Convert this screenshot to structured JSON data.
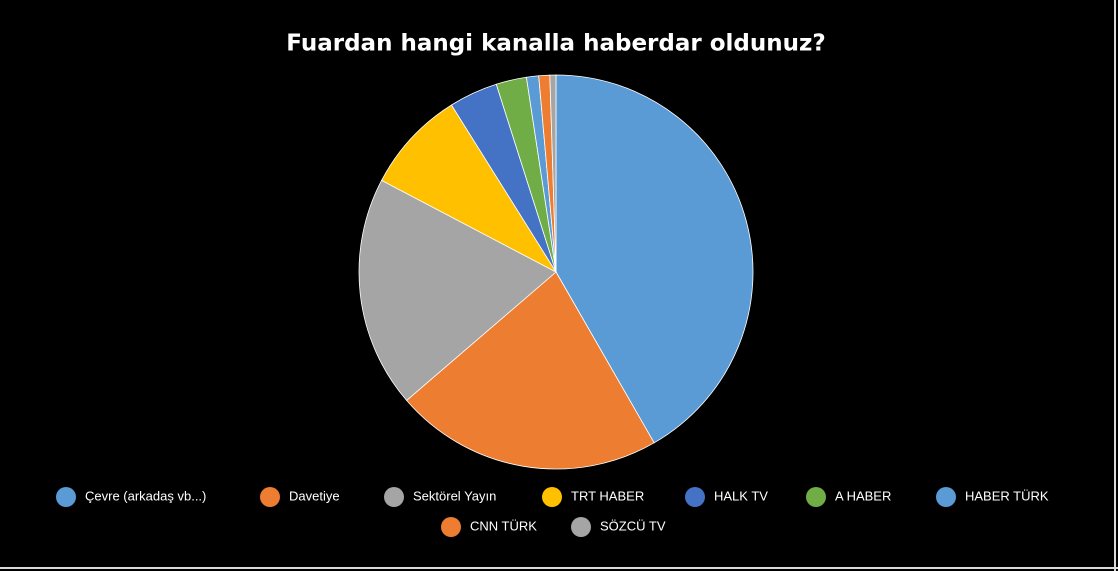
{
  "chart_data": {
    "type": "pie",
    "title": "Fuardan hangi kanalla haberdar oldunuz?",
    "categories": [
      "Çevre (arkadaş vb...)",
      "Davetiye",
      "Sektörel Yayın",
      "TRT HABER",
      "HALK TV",
      "A HABER",
      "HABER TÜRK",
      "CNN TÜRK",
      "SÖZCÜ TV"
    ],
    "values": [
      41.7,
      22,
      19,
      8.4,
      4,
      2.5,
      1,
      0.9,
      0.5
    ],
    "colors": [
      "#5b9bd5",
      "#ed7d31",
      "#a5a5a5",
      "#ffc000",
      "#4472c4",
      "#70ad47",
      "#5b9bd5",
      "#ed7d31",
      "#a5a5a5"
    ],
    "legend": "bottom"
  }
}
